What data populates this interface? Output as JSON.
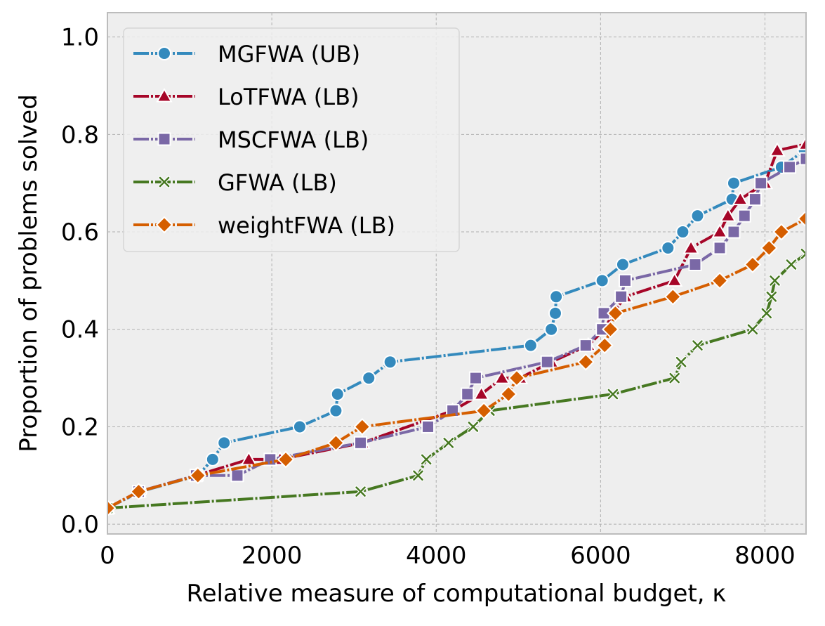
{
  "chart_data": {
    "type": "line",
    "title": "",
    "xlabel": "Relative measure of computational budget, κ",
    "ylabel": "Proportion of problems solved",
    "xlim": [
      0,
      8500
    ],
    "ylim": [
      -0.02,
      1.05
    ],
    "xticks": [
      0,
      2000,
      4000,
      6000,
      8000
    ],
    "xtick_labels": [
      "0",
      "2000",
      "4000",
      "6000",
      "8000"
    ],
    "yticks": [
      0.0,
      0.2,
      0.4,
      0.6,
      0.8,
      1.0
    ],
    "ytick_labels": [
      "0.0",
      "0.2",
      "0.4",
      "0.6",
      "0.8",
      "1.0"
    ],
    "grid": true,
    "legend_position": "top-left",
    "series": [
      {
        "name": "MGFWA (UB)",
        "color": "#348ABD",
        "marker": "circle",
        "x": [
          0,
          400,
          1100,
          1280,
          1420,
          2340,
          2780,
          2800,
          3180,
          3440,
          5150,
          5400,
          5450,
          5460,
          6020,
          6270,
          6820,
          7000,
          7180,
          7600,
          7620,
          8200,
          8480
        ],
        "y": [
          0.033,
          0.067,
          0.1,
          0.133,
          0.167,
          0.2,
          0.233,
          0.267,
          0.3,
          0.333,
          0.367,
          0.4,
          0.433,
          0.467,
          0.5,
          0.533,
          0.567,
          0.6,
          0.633,
          0.667,
          0.7,
          0.733,
          0.767
        ]
      },
      {
        "name": "LoTFWA (LB)",
        "color": "#A60628",
        "marker": "triangle",
        "x": [
          0,
          380,
          1080,
          1720,
          2100,
          3100,
          4200,
          4550,
          4800,
          5020,
          5400,
          5850,
          6050,
          6150,
          6300,
          6900,
          7100,
          7450,
          7550,
          7700,
          8000,
          8150,
          8500
        ],
        "y": [
          0.033,
          0.067,
          0.1,
          0.133,
          0.133,
          0.167,
          0.233,
          0.267,
          0.3,
          0.3,
          0.333,
          0.367,
          0.4,
          0.433,
          0.467,
          0.5,
          0.567,
          0.6,
          0.633,
          0.667,
          0.7,
          0.767,
          0.78
        ]
      },
      {
        "name": "MSCFWA (LB)",
        "color": "#7A68A6",
        "marker": "square",
        "x": [
          0,
          380,
          1080,
          1580,
          1980,
          3080,
          3900,
          4200,
          4380,
          4480,
          5350,
          5820,
          6020,
          6040,
          6250,
          6300,
          7150,
          7450,
          7620,
          7750,
          7880,
          7950,
          8300,
          8500
        ],
        "y": [
          0.033,
          0.067,
          0.1,
          0.1,
          0.133,
          0.167,
          0.2,
          0.233,
          0.267,
          0.3,
          0.333,
          0.367,
          0.4,
          0.433,
          0.467,
          0.5,
          0.533,
          0.567,
          0.6,
          0.633,
          0.667,
          0.7,
          0.733,
          0.75
        ]
      },
      {
        "name": "GFWA (LB)",
        "color": "#467821",
        "marker": "x",
        "x": [
          0,
          3080,
          3780,
          3880,
          4150,
          4450,
          4650,
          6150,
          6900,
          6980,
          7180,
          7850,
          8020,
          8080,
          8120,
          8320,
          8500
        ],
        "y": [
          0.033,
          0.067,
          0.1,
          0.133,
          0.167,
          0.2,
          0.233,
          0.267,
          0.3,
          0.333,
          0.367,
          0.4,
          0.433,
          0.467,
          0.5,
          0.533,
          0.555
        ]
      },
      {
        "name": "weightFWA (LB)",
        "color": "#D55E00",
        "marker": "diamond",
        "x": [
          0,
          380,
          1100,
          2170,
          2780,
          3100,
          4580,
          4880,
          4980,
          5820,
          6050,
          6120,
          6180,
          6880,
          7450,
          7850,
          8050,
          8200,
          8500
        ],
        "y": [
          0.033,
          0.067,
          0.1,
          0.133,
          0.167,
          0.2,
          0.233,
          0.267,
          0.3,
          0.333,
          0.367,
          0.4,
          0.433,
          0.467,
          0.5,
          0.533,
          0.567,
          0.6,
          0.627
        ]
      }
    ]
  }
}
